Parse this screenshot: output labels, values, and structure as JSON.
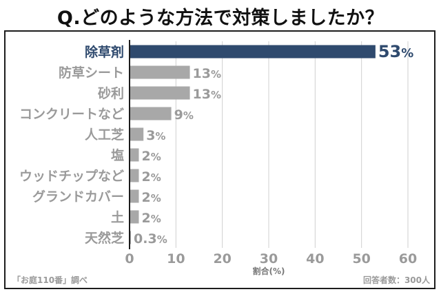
{
  "title": "Q.どのような方法で対策しましたか？",
  "chart_data": {
    "type": "bar",
    "orientation": "horizontal",
    "title": "Q.どのような方法で対策しましたか？",
    "categories": [
      "除草剤",
      "防草シート",
      "砂利",
      "コンクリートなど",
      "人工芝",
      "塩",
      "ウッドチップなど",
      "グランドカバー",
      "土",
      "天然芝"
    ],
    "values": [
      53,
      13,
      13,
      9,
      3,
      2,
      2,
      2,
      2,
      0.3
    ],
    "value_suffix": "%",
    "xlabel": "割合(%)",
    "ylabel": "",
    "xlim": [
      0,
      60
    ],
    "xticks": [
      0,
      10,
      20,
      30,
      40,
      50,
      60
    ],
    "grid": true,
    "highlight_index": 0,
    "colors": {
      "highlight": "#2f4a6e",
      "bar": "#a8a8a8",
      "highlight_text": "#2f4a6e",
      "text": "#9a9a9a",
      "grid": "#cfcfcf",
      "axis": "#1c1c1c"
    }
  },
  "footer": {
    "source": "「お庭110番」調べ",
    "respondents": "回答者数：300人"
  }
}
